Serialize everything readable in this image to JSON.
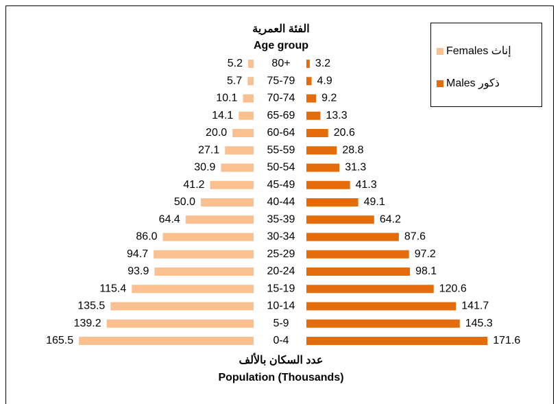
{
  "chart_data": {
    "type": "pyramid",
    "title": "الفئة العمرية",
    "subtitle": "Age group",
    "xlabel_ar": "عدد السكان بالألف",
    "xlabel": "Population (Thousands)",
    "legend_position": "top-right",
    "categories": [
      "80+",
      "75-79",
      "70-74",
      "65-69",
      "60-64",
      "55-59",
      "50-54",
      "45-49",
      "40-44",
      "35-39",
      "30-34",
      "25-29",
      "20-24",
      "15-19",
      "10-14",
      "5-9",
      "0-4"
    ],
    "series": [
      {
        "name": "Females إناث",
        "color": "#fac090",
        "side": "left",
        "values": [
          5.2,
          5.7,
          10.1,
          14.1,
          20.0,
          27.1,
          30.9,
          41.2,
          50.0,
          64.4,
          86.0,
          94.7,
          93.9,
          115.4,
          135.5,
          139.2,
          165.5
        ],
        "value_labels": [
          "5.2",
          "5.7",
          "10.1",
          "14.1",
          "20.0",
          "27.1",
          "30.9",
          "41.2",
          "50.0",
          "64.4",
          "86.0",
          "94.7",
          "93.9",
          "115.4",
          "135.5",
          "139.2",
          "165.5"
        ]
      },
      {
        "name": "Males ذكور",
        "color": "#e46c0a",
        "side": "right",
        "values": [
          3.2,
          4.9,
          9.2,
          13.3,
          20.6,
          28.8,
          31.3,
          41.3,
          49.1,
          64.2,
          87.6,
          97.2,
          98.1,
          120.6,
          141.7,
          145.3,
          171.6
        ],
        "value_labels": [
          "3.2",
          "4.9",
          "9.2",
          "13.3",
          "20.6",
          "28.8",
          "31.3",
          "41.3",
          "49.1",
          "64.2",
          "87.6",
          "97.2",
          "98.1",
          "120.6",
          "141.7",
          "145.3",
          "171.6"
        ]
      }
    ]
  }
}
